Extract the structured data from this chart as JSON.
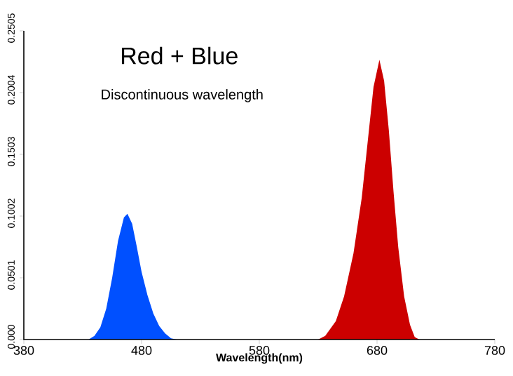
{
  "chart_data": {
    "type": "area",
    "title": "Red + Blue",
    "subtitle": "Discontinuous wavelength",
    "xlabel": "Wavelength(nm)",
    "xlim": [
      380,
      780
    ],
    "xticks": [
      380,
      480,
      580,
      680,
      780
    ],
    "ylim": [
      0,
      0.2505
    ],
    "yticks": [
      {
        "value": 0,
        "label": "0.000"
      },
      0.0501,
      0.1002,
      0.1503,
      0.2004,
      0.2505
    ],
    "grid": false,
    "series": [
      {
        "color": "#0050ff",
        "x": [
          435,
          440,
          445,
          450,
          455,
          460,
          465,
          468,
          472,
          476,
          480,
          485,
          490,
          495,
          500,
          505,
          510
        ],
        "values": [
          0,
          0.003,
          0.01,
          0.025,
          0.05,
          0.08,
          0.099,
          0.102,
          0.094,
          0.075,
          0.055,
          0.036,
          0.021,
          0.011,
          0.005,
          0.001,
          0
        ]
      },
      {
        "color": "#cc0000",
        "x": [
          630,
          636,
          645,
          652,
          660,
          667,
          672,
          677,
          682,
          686,
          690,
          694,
          698,
          703,
          708,
          712,
          716
        ],
        "values": [
          0,
          0.003,
          0.015,
          0.035,
          0.07,
          0.115,
          0.16,
          0.205,
          0.227,
          0.21,
          0.17,
          0.12,
          0.075,
          0.035,
          0.012,
          0.002,
          0
        ]
      }
    ]
  }
}
